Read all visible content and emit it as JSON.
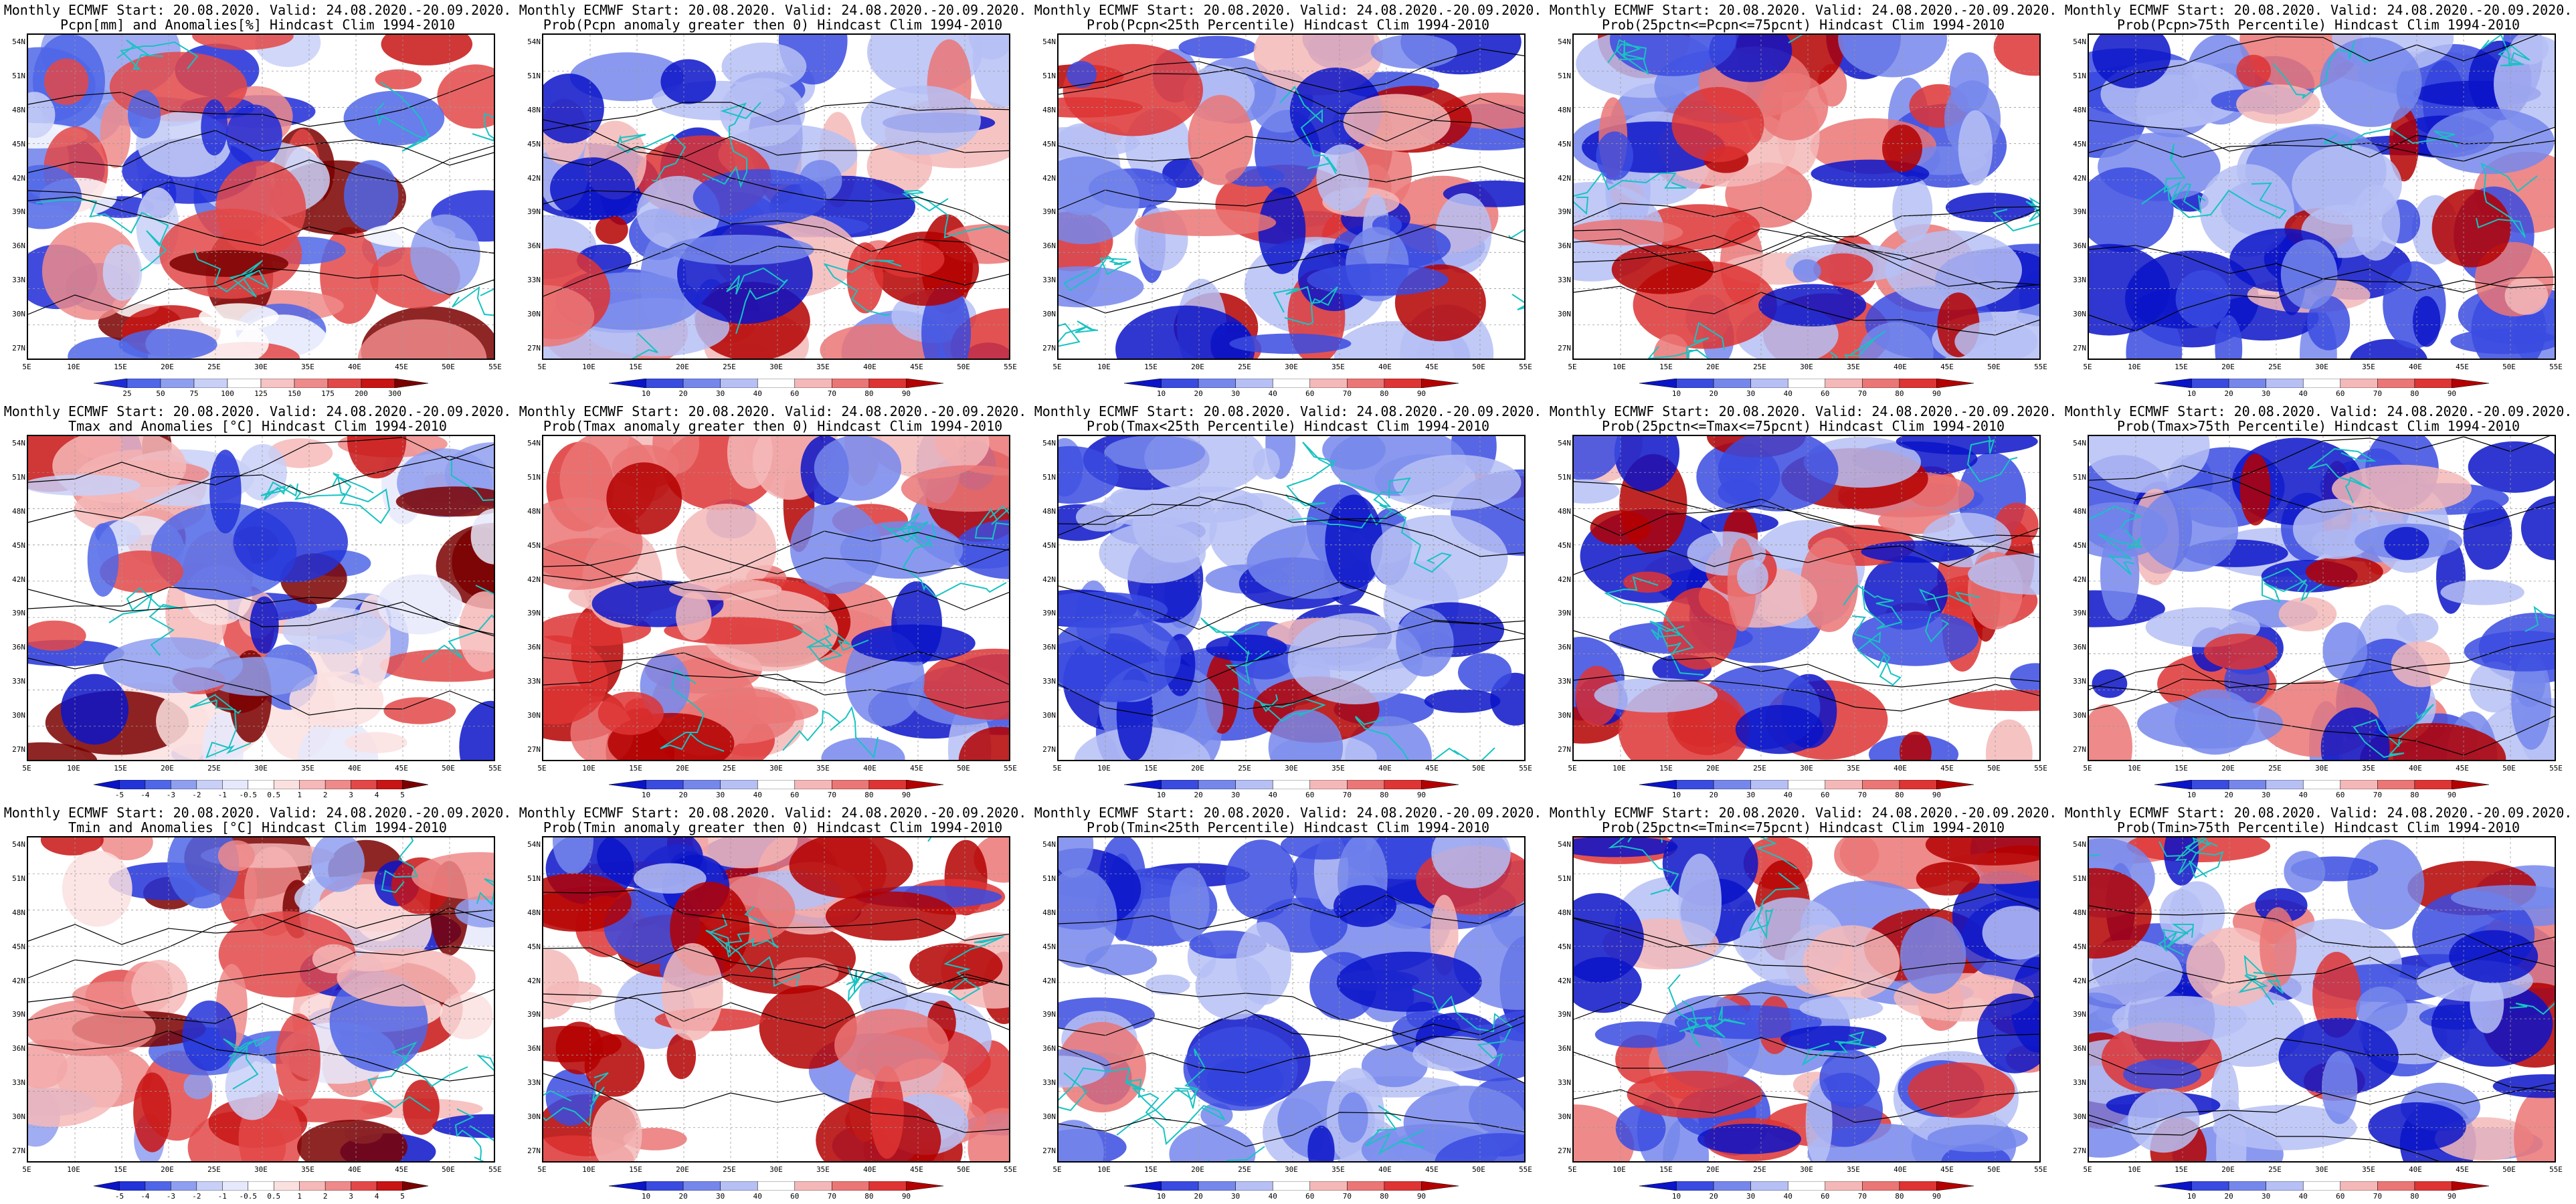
{
  "grid": {
    "lat_labels": [
      "54N",
      "51N",
      "48N",
      "45N",
      "42N",
      "39N",
      "36N",
      "33N",
      "30N",
      "27N"
    ],
    "lon_labels": [
      "5E",
      "10E",
      "15E",
      "20E",
      "25E",
      "30E",
      "35E",
      "40E",
      "45E",
      "50E",
      "55E"
    ]
  },
  "colorbars": {
    "pcpn_anom": {
      "labels": [
        "25",
        "50",
        "75",
        "100",
        "125",
        "150",
        "175",
        "200",
        "300"
      ],
      "colors": [
        "#1e2cd8",
        "#4f66e8",
        "#8f9ff0",
        "#c9d0f7",
        "#ffffff",
        "#f6c4c4",
        "#ee8a8a",
        "#e34848",
        "#c81414",
        "#7a0000"
      ]
    },
    "prob": {
      "labels": [
        "10",
        "20",
        "30",
        "40",
        "60",
        "70",
        "80",
        "90"
      ],
      "colors": [
        "#0a14c8",
        "#3a4be0",
        "#7687ec",
        "#b6c0f5",
        "#ffffff",
        "#f5b8b8",
        "#eb7676",
        "#de3434",
        "#b40000"
      ]
    },
    "temp_anom": {
      "labels": [
        "-5",
        "-4",
        "-3",
        "-2",
        "-1",
        "-0.5",
        "0.5",
        "1",
        "2",
        "3",
        "4",
        "5"
      ],
      "colors": [
        "#0a14c8",
        "#2233d8",
        "#4f66e8",
        "#8f9ff0",
        "#c9d0f7",
        "#e6e9fb",
        "#ffffff",
        "#fbe0e0",
        "#f6b8b8",
        "#ee8a8a",
        "#e34848",
        "#c81414",
        "#7a0000"
      ]
    }
  },
  "panels": [
    {
      "id": "r1c1",
      "title1": "Monthly ECMWF Start: 20.08.2020. Valid: 24.08.2020.-20.09.2020.",
      "title2": "Pcpn[mm] and Anomalies[%] Hindcast Clim 1994-2010",
      "cbar": "pcpn_anom",
      "mean_fraction_warm": 0.3
    },
    {
      "id": "r1c2",
      "title1": "Monthly ECMWF Start: 20.08.2020. Valid: 24.08.2020.-20.09.2020.",
      "title2": "Prob(Pcpn anomaly greater then 0) Hindcast Clim 1994-2010",
      "cbar": "prob",
      "mean_fraction_warm": 0.35
    },
    {
      "id": "r1c3",
      "title1": "Monthly ECMWF Start: 20.08.2020. Valid: 24.08.2020.-20.09.2020.",
      "title2": "Prob(Pcpn<25th Percentile) Hindcast Clim 1994-2010",
      "cbar": "prob",
      "mean_fraction_warm": 0.4
    },
    {
      "id": "r1c4",
      "title1": "Monthly ECMWF Start: 20.08.2020. Valid: 24.08.2020.-20.09.2020.",
      "title2": "Prob(25pctn<=Pcpn<=75pcnt) Hindcast Clim 1994-2010",
      "cbar": "prob",
      "mean_fraction_warm": 0.35
    },
    {
      "id": "r1c5",
      "title1": "Monthly ECMWF Start: 20.08.2020. Valid: 24.08.2020.-20.09.2020.",
      "title2": "Prob(Pcpn>75th Percentile) Hindcast Clim 1994-2010",
      "cbar": "prob",
      "mean_fraction_warm": 0.15
    },
    {
      "id": "r2c1",
      "title1": "Monthly ECMWF Start: 20.08.2020. Valid: 24.08.2020.-20.09.2020.",
      "title2": "Tmax and Anomalies [°C] Hindcast Clim 1994-2010",
      "cbar": "temp_anom",
      "mean_fraction_warm": 0.55
    },
    {
      "id": "r2c2",
      "title1": "Monthly ECMWF Start: 20.08.2020. Valid: 24.08.2020.-20.09.2020.",
      "title2": "Prob(Tmax anomaly greater then 0) Hindcast Clim 1994-2010",
      "cbar": "prob",
      "mean_fraction_warm": 0.7
    },
    {
      "id": "r2c3",
      "title1": "Monthly ECMWF Start: 20.08.2020. Valid: 24.08.2020.-20.09.2020.",
      "title2": "Prob(Tmax<25th Percentile) Hindcast Clim 1994-2010",
      "cbar": "prob",
      "mean_fraction_warm": 0.05
    },
    {
      "id": "r2c4",
      "title1": "Monthly ECMWF Start: 20.08.2020. Valid: 24.08.2020.-20.09.2020.",
      "title2": "Prob(25pctn<=Tmax<=75pcnt) Hindcast Clim 1994-2010",
      "cbar": "prob",
      "mean_fraction_warm": 0.45
    },
    {
      "id": "r2c5",
      "title1": "Monthly ECMWF Start: 20.08.2020. Valid: 24.08.2020.-20.09.2020.",
      "title2": "Prob(Tmax>75th Percentile) Hindcast Clim 1994-2010",
      "cbar": "prob",
      "mean_fraction_warm": 0.2
    },
    {
      "id": "r3c1",
      "title1": "Monthly ECMWF Start: 20.08.2020. Valid: 24.08.2020.-20.09.2020.",
      "title2": "Tmin and Anomalies [°C] Hindcast Clim 1994-2010",
      "cbar": "temp_anom",
      "mean_fraction_warm": 0.6
    },
    {
      "id": "r3c2",
      "title1": "Monthly ECMWF Start: 20.08.2020. Valid: 24.08.2020.-20.09.2020.",
      "title2": "Prob(Tmin anomaly greater then 0) Hindcast Clim 1994-2010",
      "cbar": "prob",
      "mean_fraction_warm": 0.75
    },
    {
      "id": "r3c3",
      "title1": "Monthly ECMWF Start: 20.08.2020. Valid: 24.08.2020.-20.09.2020.",
      "title2": "Prob(Tmin<25th Percentile) Hindcast Clim 1994-2010",
      "cbar": "prob",
      "mean_fraction_warm": 0.05
    },
    {
      "id": "r3c4",
      "title1": "Monthly ECMWF Start: 20.08.2020. Valid: 24.08.2020.-20.09.2020.",
      "title2": "Prob(25pctn<=Tmin<=75pcnt) Hindcast Clim 1994-2010",
      "cbar": "prob",
      "mean_fraction_warm": 0.5
    },
    {
      "id": "r3c5",
      "title1": "Monthly ECMWF Start: 20.08.2020. Valid: 24.08.2020.-20.09.2020.",
      "title2": "Prob(Tmin>75th Percentile) Hindcast Clim 1994-2010",
      "cbar": "prob",
      "mean_fraction_warm": 0.2
    }
  ],
  "chart_data": [
    {
      "type": "heatmap",
      "title": "Monthly ECMWF Start: 20.08.2020. Valid: 24.08.2020.-20.09.2020. Pcpn[mm] and Anomalies[%] Hindcast Clim 1994-2010",
      "x_range": [
        "5E",
        "55E"
      ],
      "y_range": [
        "27N",
        "54N"
      ],
      "legend": [
        "25",
        "50",
        "75",
        "100",
        "125",
        "150",
        "175",
        "200",
        "300"
      ]
    },
    {
      "type": "heatmap",
      "title": "Monthly ECMWF Start: 20.08.2020. Valid: 24.08.2020.-20.09.2020. Prob(Pcpn anomaly greater then 0) Hindcast Clim 1994-2010",
      "x_range": [
        "5E",
        "55E"
      ],
      "y_range": [
        "27N",
        "54N"
      ],
      "legend": [
        "10",
        "20",
        "30",
        "40",
        "60",
        "70",
        "80",
        "90"
      ]
    },
    {
      "type": "heatmap",
      "title": "Monthly ECMWF Start: 20.08.2020. Valid: 24.08.2020.-20.09.2020. Prob(Pcpn<25th Percentile) Hindcast Clim 1994-2010",
      "x_range": [
        "5E",
        "55E"
      ],
      "y_range": [
        "27N",
        "54N"
      ],
      "legend": [
        "10",
        "20",
        "30",
        "40",
        "60",
        "70",
        "80",
        "90"
      ]
    },
    {
      "type": "heatmap",
      "title": "Monthly ECMWF Start: 20.08.2020. Valid: 24.08.2020.-20.09.2020. Prob(25pctn<=Pcpn<=75pcnt) Hindcast Clim 1994-2010",
      "x_range": [
        "5E",
        "55E"
      ],
      "y_range": [
        "27N",
        "54N"
      ],
      "legend": [
        "10",
        "20",
        "30",
        "40",
        "60",
        "70",
        "80",
        "90"
      ]
    },
    {
      "type": "heatmap",
      "title": "Monthly ECMWF Start: 20.08.2020. Valid: 24.08.2020.-20.09.2020. Prob(Pcpn>75th Percentile) Hindcast Clim 1994-2010",
      "x_range": [
        "5E",
        "55E"
      ],
      "y_range": [
        "27N",
        "54N"
      ],
      "legend": [
        "10",
        "20",
        "30",
        "40",
        "60",
        "70",
        "80",
        "90"
      ]
    },
    {
      "type": "heatmap",
      "title": "Monthly ECMWF Start: 20.08.2020. Valid: 24.08.2020.-20.09.2020. Tmax and Anomalies [°C] Hindcast Clim 1994-2010",
      "x_range": [
        "5E",
        "55E"
      ],
      "y_range": [
        "27N",
        "54N"
      ],
      "legend": [
        "-5",
        "-4",
        "-3",
        "-2",
        "-1",
        "-0.5",
        "0.5",
        "1",
        "2",
        "3",
        "4",
        "5"
      ]
    },
    {
      "type": "heatmap",
      "title": "Monthly ECMWF Start: 20.08.2020. Valid: 24.08.2020.-20.09.2020. Prob(Tmax anomaly greater then 0) Hindcast Clim 1994-2010",
      "x_range": [
        "5E",
        "55E"
      ],
      "y_range": [
        "27N",
        "54N"
      ],
      "legend": [
        "10",
        "20",
        "30",
        "40",
        "60",
        "70",
        "80",
        "90"
      ]
    },
    {
      "type": "heatmap",
      "title": "Monthly ECMWF Start: 20.08.2020. Valid: 24.08.2020.-20.09.2020. Prob(Tmax<25th Percentile) Hindcast Clim 1994-2010",
      "x_range": [
        "5E",
        "55E"
      ],
      "y_range": [
        "27N",
        "54N"
      ],
      "legend": [
        "10",
        "20",
        "30",
        "40",
        "60",
        "70",
        "80",
        "90"
      ]
    },
    {
      "type": "heatmap",
      "title": "Monthly ECMWF Start: 20.08.2020. Valid: 24.08.2020.-20.09.2020. Prob(25pctn<=Tmax<=75pcnt) Hindcast Clim 1994-2010",
      "x_range": [
        "5E",
        "55E"
      ],
      "y_range": [
        "27N",
        "54N"
      ],
      "legend": [
        "10",
        "20",
        "30",
        "40",
        "60",
        "70",
        "80",
        "90"
      ]
    },
    {
      "type": "heatmap",
      "title": "Monthly ECMWF Start: 20.08.2020. Valid: 24.08.2020.-20.09.2020. Prob(Tmax>75th Percentile) Hindcast Clim 1994-2010",
      "x_range": [
        "5E",
        "55E"
      ],
      "y_range": [
        "27N",
        "54N"
      ],
      "legend": [
        "10",
        "20",
        "30",
        "40",
        "60",
        "70",
        "80",
        "90"
      ]
    },
    {
      "type": "heatmap",
      "title": "Monthly ECMWF Start: 20.08.2020. Valid: 24.08.2020.-20.09.2020. Tmin and Anomalies [°C] Hindcast Clim 1994-2010",
      "x_range": [
        "5E",
        "55E"
      ],
      "y_range": [
        "27N",
        "54N"
      ],
      "legend": [
        "-5",
        "-4",
        "-3",
        "-2",
        "-1",
        "-0.5",
        "0.5",
        "1",
        "2",
        "3",
        "4",
        "5"
      ]
    },
    {
      "type": "heatmap",
      "title": "Monthly ECMWF Start: 20.08.2020. Valid: 24.08.2020.-20.09.2020. Prob(Tmin anomaly greater then 0) Hindcast Clim 1994-2010",
      "x_range": [
        "5E",
        "55E"
      ],
      "y_range": [
        "27N",
        "54N"
      ],
      "legend": [
        "10",
        "20",
        "30",
        "40",
        "60",
        "70",
        "80",
        "90"
      ]
    },
    {
      "type": "heatmap",
      "title": "Monthly ECMWF Start: 20.08.2020. Valid: 24.08.2020.-20.09.2020. Prob(Tmin<25th Percentile) Hindcast Clim 1994-2010",
      "x_range": [
        "5E",
        "55E"
      ],
      "y_range": [
        "27N",
        "54N"
      ],
      "legend": [
        "10",
        "20",
        "30",
        "40",
        "60",
        "70",
        "80",
        "90"
      ]
    },
    {
      "type": "heatmap",
      "title": "Monthly ECMWF Start: 20.08.2020. Valid: 24.08.2020.-20.09.2020. Prob(25pctn<=Tmin<=75pcnt) Hindcast Clim 1994-2010",
      "x_range": [
        "5E",
        "55E"
      ],
      "y_range": [
        "27N",
        "54N"
      ],
      "legend": [
        "10",
        "20",
        "30",
        "40",
        "60",
        "70",
        "80",
        "90"
      ]
    },
    {
      "type": "heatmap",
      "title": "Monthly ECMWF Start: 20.08.2020. Valid: 24.08.2020.-20.09.2020. Prob(Tmin>75th Percentile) Hindcast Clim 1994-2010",
      "x_range": [
        "5E",
        "55E"
      ],
      "y_range": [
        "27N",
        "54N"
      ],
      "legend": [
        "10",
        "20",
        "30",
        "40",
        "60",
        "70",
        "80",
        "90"
      ]
    }
  ]
}
